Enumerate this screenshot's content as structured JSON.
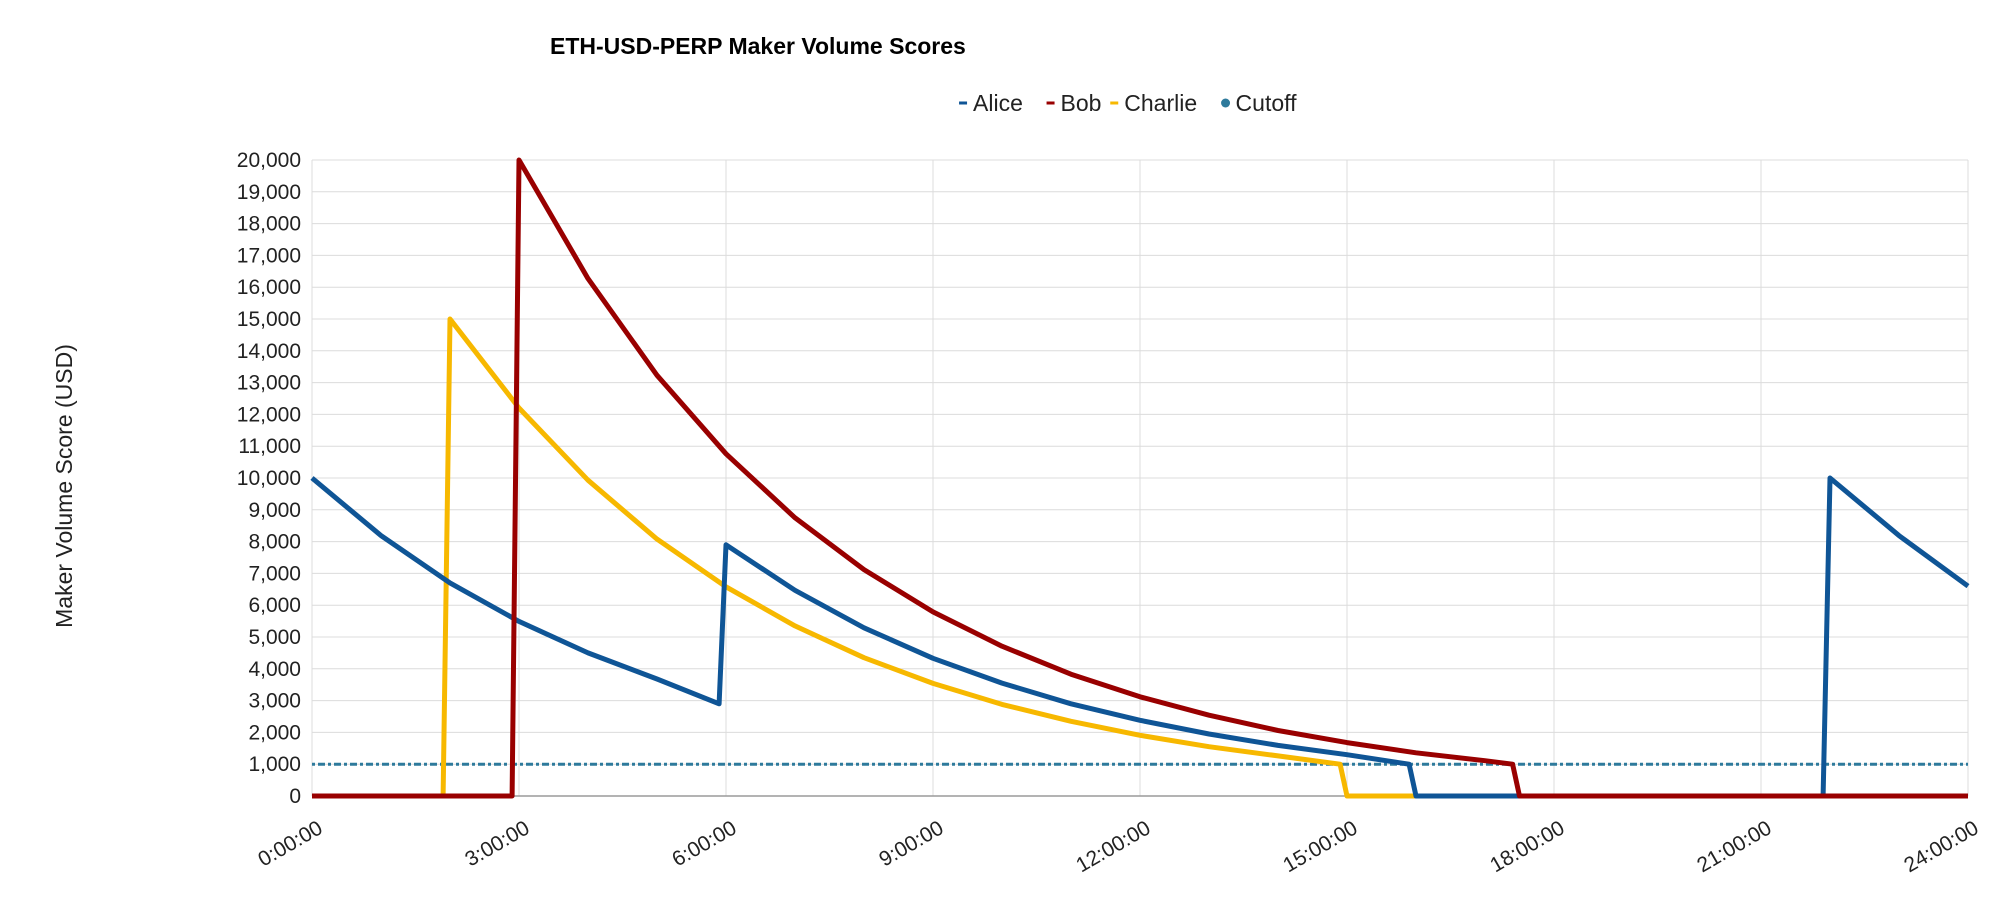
{
  "chart_data": {
    "type": "line",
    "title": "ETH-USD-PERP Maker Volume Scores",
    "xlabel": "",
    "ylabel": "Maker Volume Score (USD)",
    "xlim": [
      0,
      24
    ],
    "ylim": [
      0,
      20000
    ],
    "x_tick_labels": [
      "0:00:00",
      "3:00:00",
      "6:00:00",
      "9:00:00",
      "12:00:00",
      "15:00:00",
      "18:00:00",
      "21:00:00",
      "24:00:00"
    ],
    "x_tick_hours": [
      0,
      3,
      6,
      9,
      12,
      15,
      18,
      21,
      24
    ],
    "y_tick_labels": [
      "0",
      "1,000",
      "2,000",
      "3,000",
      "4,000",
      "5,000",
      "6,000",
      "7,000",
      "8,000",
      "9,000",
      "10,000",
      "11,000",
      "12,000",
      "13,000",
      "14,000",
      "15,000",
      "16,000",
      "17,000",
      "18,000",
      "19,000",
      "20,000"
    ],
    "y_tick_values": [
      0,
      1000,
      2000,
      3000,
      4000,
      5000,
      6000,
      7000,
      8000,
      9000,
      10000,
      11000,
      12000,
      13000,
      14000,
      15000,
      16000,
      17000,
      18000,
      19000,
      20000
    ],
    "grid": true,
    "legend_position": "top",
    "series": [
      {
        "name": "Alice",
        "color": "#0f5596",
        "marker": "dash",
        "x_hours": [
          0,
          1,
          2,
          3,
          4,
          5,
          5.9,
          6,
          7,
          8,
          9,
          10,
          11,
          12,
          13,
          14,
          15,
          15.9,
          16,
          17,
          18,
          19,
          20,
          21,
          21.9,
          22,
          23,
          24
        ],
        "values": [
          10000,
          8190,
          6700,
          5490,
          4500,
          3680,
          2900,
          7900,
          6470,
          5290,
          4330,
          3550,
          2900,
          2380,
          1950,
          1590,
          1300,
          1000,
          0,
          0,
          0,
          0,
          0,
          0,
          0,
          10000,
          8190,
          6600
        ]
      },
      {
        "name": "Bob",
        "color": "#990000",
        "marker": "dash",
        "x_hours": [
          0,
          1,
          2,
          2.9,
          3,
          4,
          5,
          6,
          7,
          8,
          9,
          10,
          11,
          12,
          13,
          14,
          15,
          16,
          17,
          17.4,
          17.5,
          18,
          19,
          20,
          21,
          22,
          23,
          24
        ],
        "values": [
          0,
          0,
          0,
          0,
          20000,
          16270,
          13230,
          10760,
          8750,
          7120,
          5790,
          4710,
          3830,
          3120,
          2540,
          2060,
          1680,
          1360,
          1110,
          1000,
          0,
          0,
          0,
          0,
          0,
          0,
          0,
          0
        ]
      },
      {
        "name": "Charlie",
        "color": "#f7b800",
        "marker": "dash",
        "x_hours": [
          0,
          1,
          1.9,
          2,
          3,
          4,
          5,
          6,
          7,
          8,
          9,
          10,
          11,
          12,
          13,
          14,
          14.9,
          15,
          16,
          17,
          18,
          19,
          20,
          21,
          22,
          23,
          24
        ],
        "values": [
          0,
          0,
          0,
          15000,
          12200,
          9930,
          8080,
          6580,
          5350,
          4350,
          3540,
          2880,
          2350,
          1910,
          1550,
          1260,
          1000,
          0,
          0,
          0,
          0,
          0,
          0,
          0,
          0,
          0,
          0
        ]
      },
      {
        "name": "Cutoff",
        "color": "#2e7a9c",
        "marker": "dot",
        "dashed": true,
        "x_hours": [
          0,
          24
        ],
        "values": [
          1000,
          1000
        ]
      }
    ]
  }
}
